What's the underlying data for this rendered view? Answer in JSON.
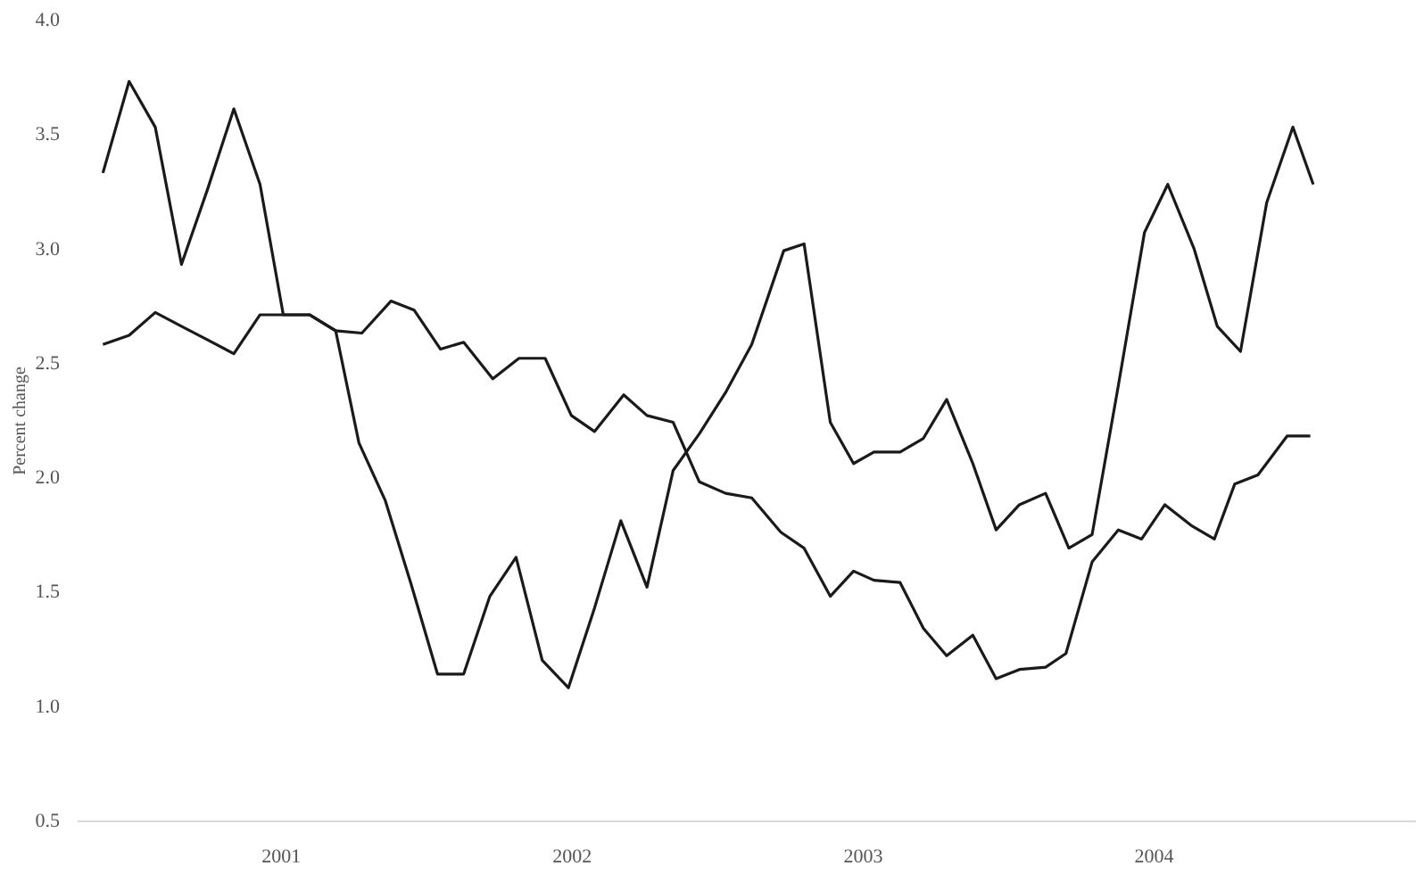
{
  "chart_data": {
    "type": "line",
    "ylabel": "Percent change",
    "xlim": [
      2000.3,
      2004.9
    ],
    "xticks": [
      2001,
      2002,
      2003,
      2004
    ],
    "ylim": [
      0.5,
      4.0
    ],
    "yticks": [
      {
        "value": 0.5,
        "label": "0.5"
      },
      {
        "value": 1.0,
        "label": "1.0"
      },
      {
        "value": 1.5,
        "label": "1.5"
      },
      {
        "value": 2.0,
        "label": "2.0"
      },
      {
        "value": 2.5,
        "label": "2.5"
      },
      {
        "value": 3.0,
        "label": "3.0"
      },
      {
        "value": 3.5,
        "label": "3.5"
      },
      {
        "value": 4.0,
        "label": "4.0"
      }
    ],
    "grid": false,
    "line_style": "solid",
    "marker": "none",
    "series": [
      {
        "color": "#1a1a1a",
        "x": [
          2000.39,
          2000.48,
          2000.57,
          2000.66,
          2000.75,
          2000.84,
          2000.93,
          2001.01,
          2001.1,
          2001.19,
          2001.27,
          2001.36,
          2001.45,
          2001.54,
          2001.63,
          2001.72,
          2001.81,
          2001.9,
          2001.99,
          2002.08,
          2002.17,
          2002.26,
          2002.35,
          2002.44,
          2002.53,
          2002.62,
          2002.73,
          2002.8,
          2002.89,
          2002.97,
          2003.04,
          2003.13,
          2003.21,
          2003.29,
          2003.38,
          2003.46,
          2003.54,
          2003.63,
          2003.71,
          2003.79,
          2003.88,
          2003.97,
          2004.05,
          2004.14,
          2004.22,
          2004.3,
          2004.39,
          2004.48,
          2004.55
        ],
        "values": [
          3.33,
          3.73,
          3.53,
          2.93,
          3.26,
          3.61,
          3.28,
          2.71,
          2.71,
          2.64,
          2.15,
          1.9,
          1.53,
          1.14,
          1.14,
          1.48,
          1.65,
          1.2,
          1.08,
          1.43,
          1.81,
          1.52,
          2.03,
          2.19,
          2.37,
          2.58,
          2.99,
          3.02,
          2.24,
          2.06,
          2.11,
          2.11,
          2.17,
          2.34,
          2.06,
          1.77,
          1.88,
          1.93,
          1.69,
          1.75,
          2.4,
          3.07,
          3.28,
          3.0,
          2.66,
          2.55,
          3.2,
          3.53,
          3.28
        ]
      },
      {
        "color": "#1a1a1a",
        "x": [
          2000.39,
          2000.48,
          2000.57,
          2000.66,
          2000.75,
          2000.84,
          2000.93,
          2001.01,
          2001.1,
          2001.19,
          2001.28,
          2001.38,
          2001.46,
          2001.55,
          2001.63,
          2001.73,
          2001.82,
          2001.91,
          2002.0,
          2002.08,
          2002.18,
          2002.26,
          2002.35,
          2002.44,
          2002.53,
          2002.62,
          2002.72,
          2002.8,
          2002.89,
          2002.97,
          2003.04,
          2003.13,
          2003.21,
          2003.29,
          2003.38,
          2003.46,
          2003.54,
          2003.63,
          2003.7,
          2003.79,
          2003.88,
          2003.96,
          2004.04,
          2004.13,
          2004.21,
          2004.28,
          2004.36,
          2004.46,
          2004.54
        ],
        "values": [
          2.58,
          2.62,
          2.72,
          2.66,
          2.6,
          2.54,
          2.71,
          2.71,
          2.71,
          2.64,
          2.63,
          2.77,
          2.73,
          2.56,
          2.59,
          2.43,
          2.52,
          2.52,
          2.27,
          2.2,
          2.36,
          2.27,
          2.24,
          1.98,
          1.93,
          1.91,
          1.76,
          1.69,
          1.48,
          1.59,
          1.55,
          1.54,
          1.34,
          1.22,
          1.31,
          1.12,
          1.16,
          1.17,
          1.23,
          1.63,
          1.77,
          1.73,
          1.88,
          1.79,
          1.73,
          1.97,
          2.01,
          2.18,
          2.18
        ]
      }
    ]
  }
}
